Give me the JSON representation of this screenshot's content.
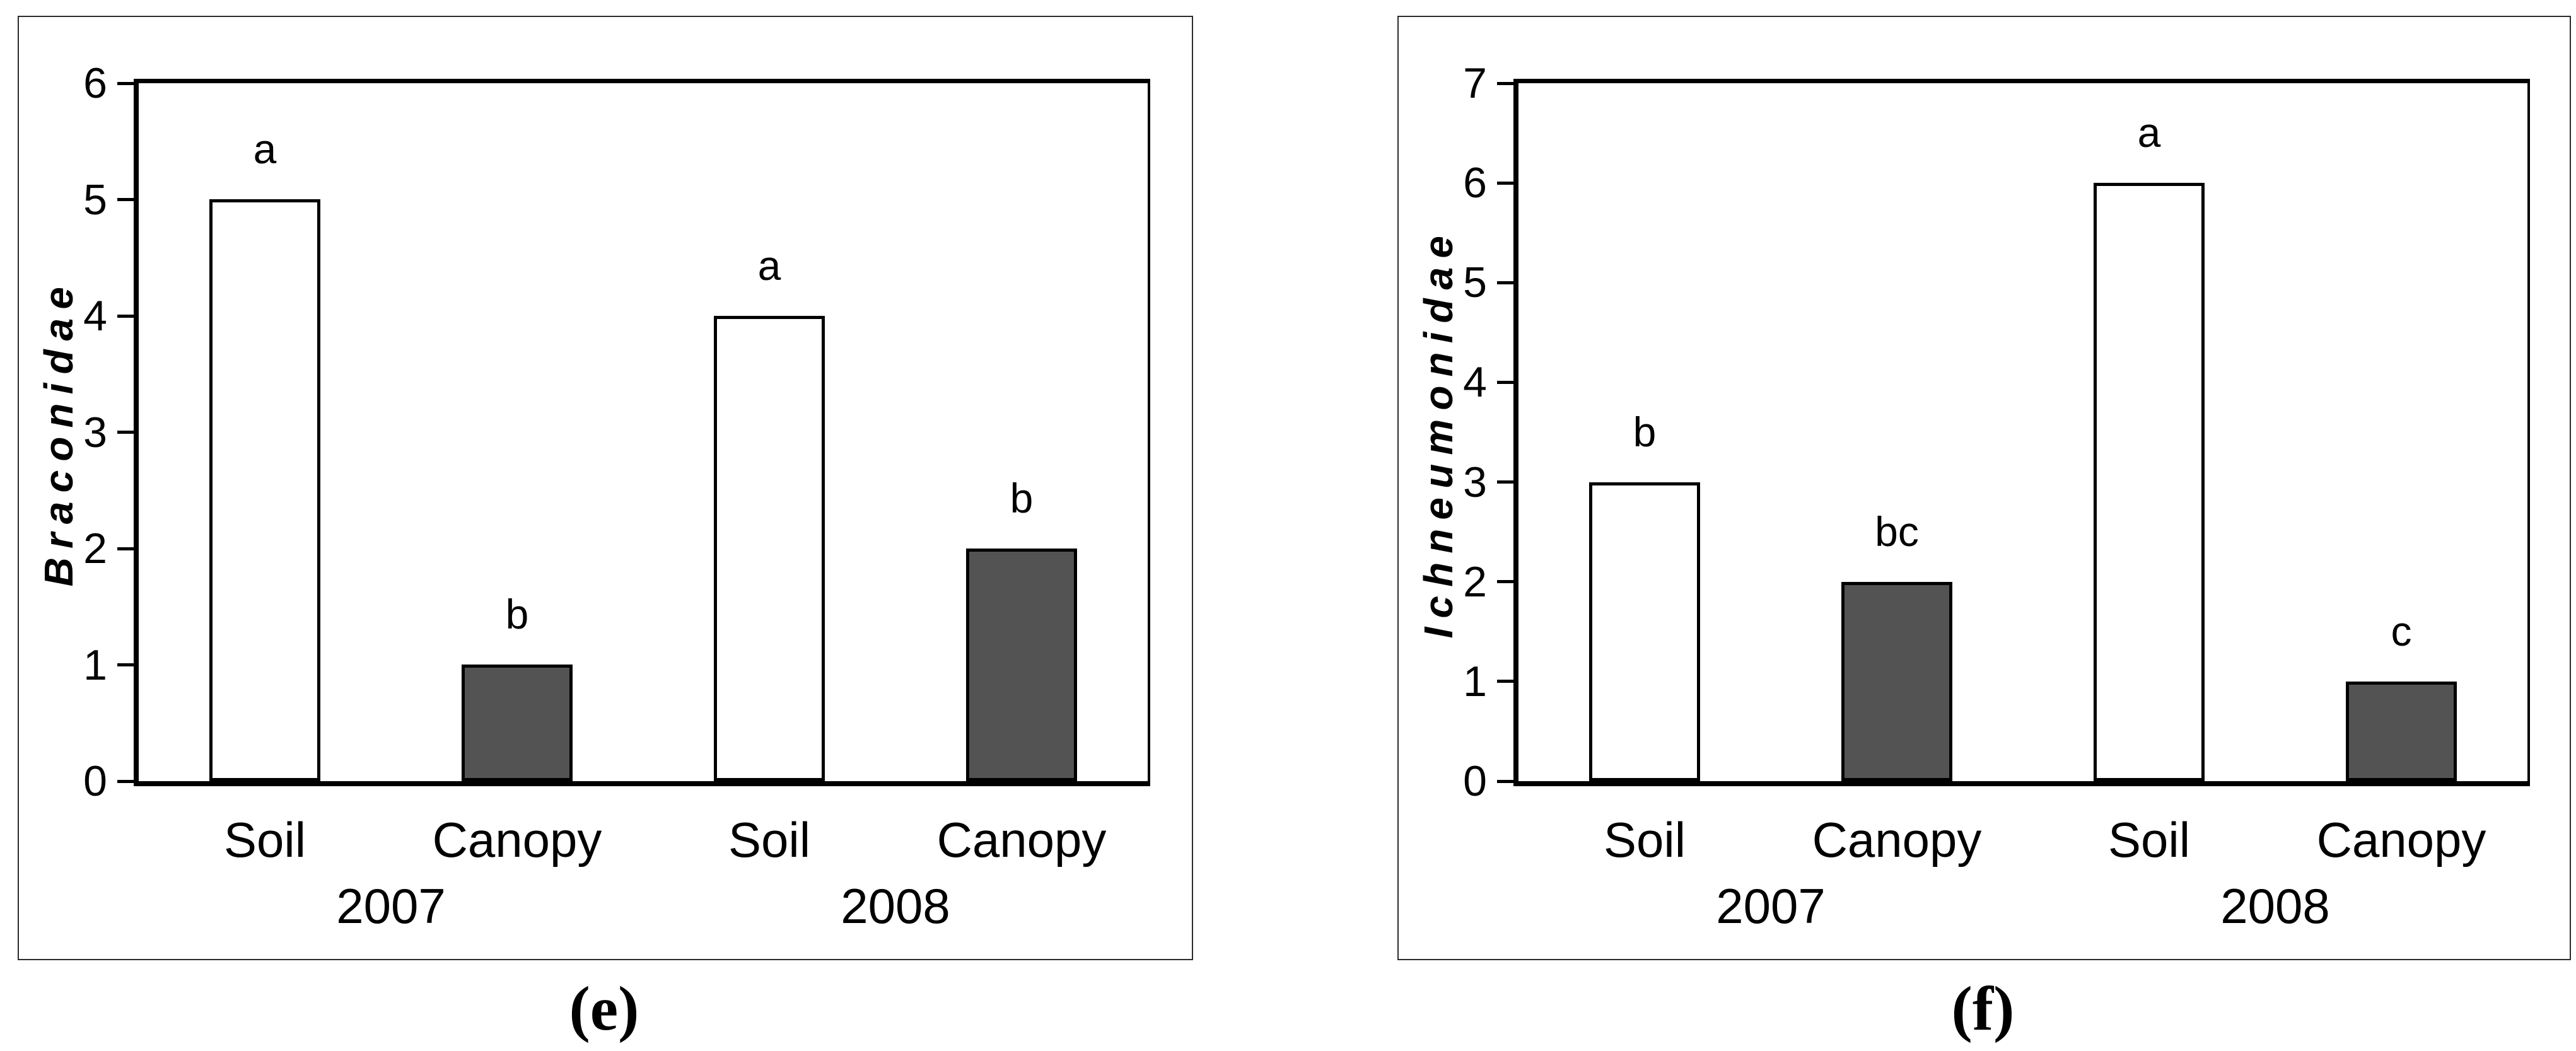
{
  "page": {
    "background": "#ffffff"
  },
  "colors": {
    "axis": "#000000",
    "text": "#000000",
    "panel_border": "#2b2b2b",
    "open_bar_fill": "#ffffff",
    "filled_bar_fill": "#535353",
    "bar_border": "#000000"
  },
  "chart_data": [
    {
      "type": "bar",
      "panel_label": "(e)",
      "ylabel": "Braconidae",
      "ylabel_style": "bold-italic-letterspaced",
      "ylim": [
        0,
        6
      ],
      "ytick_step": 1,
      "yticks": [
        0,
        1,
        2,
        3,
        4,
        5,
        6
      ],
      "categories": [
        "Soil",
        "Canopy",
        "Soil",
        "Canopy"
      ],
      "group_labels": [
        "2007",
        "2008"
      ],
      "values": [
        5,
        1,
        4,
        2
      ],
      "significance_letters": [
        "a",
        "b",
        "a",
        "b"
      ],
      "bar_styles": [
        "open",
        "filled",
        "open",
        "filled"
      ],
      "grid": false,
      "legend": "none"
    },
    {
      "type": "bar",
      "panel_label": "(f)",
      "ylabel": "Ichneumonidae",
      "ylabel_style": "bold-italic-letterspaced",
      "ylim": [
        0,
        7
      ],
      "ytick_step": 1,
      "yticks": [
        0,
        1,
        2,
        3,
        4,
        5,
        6,
        7
      ],
      "categories": [
        "Soil",
        "Canopy",
        "Soil",
        "Canopy"
      ],
      "group_labels": [
        "2007",
        "2008"
      ],
      "values": [
        3,
        2,
        6,
        1
      ],
      "significance_letters": [
        "b",
        "bc",
        "a",
        "c"
      ],
      "bar_styles": [
        "open",
        "filled",
        "open",
        "filled"
      ],
      "grid": false,
      "legend": "none"
    }
  ]
}
